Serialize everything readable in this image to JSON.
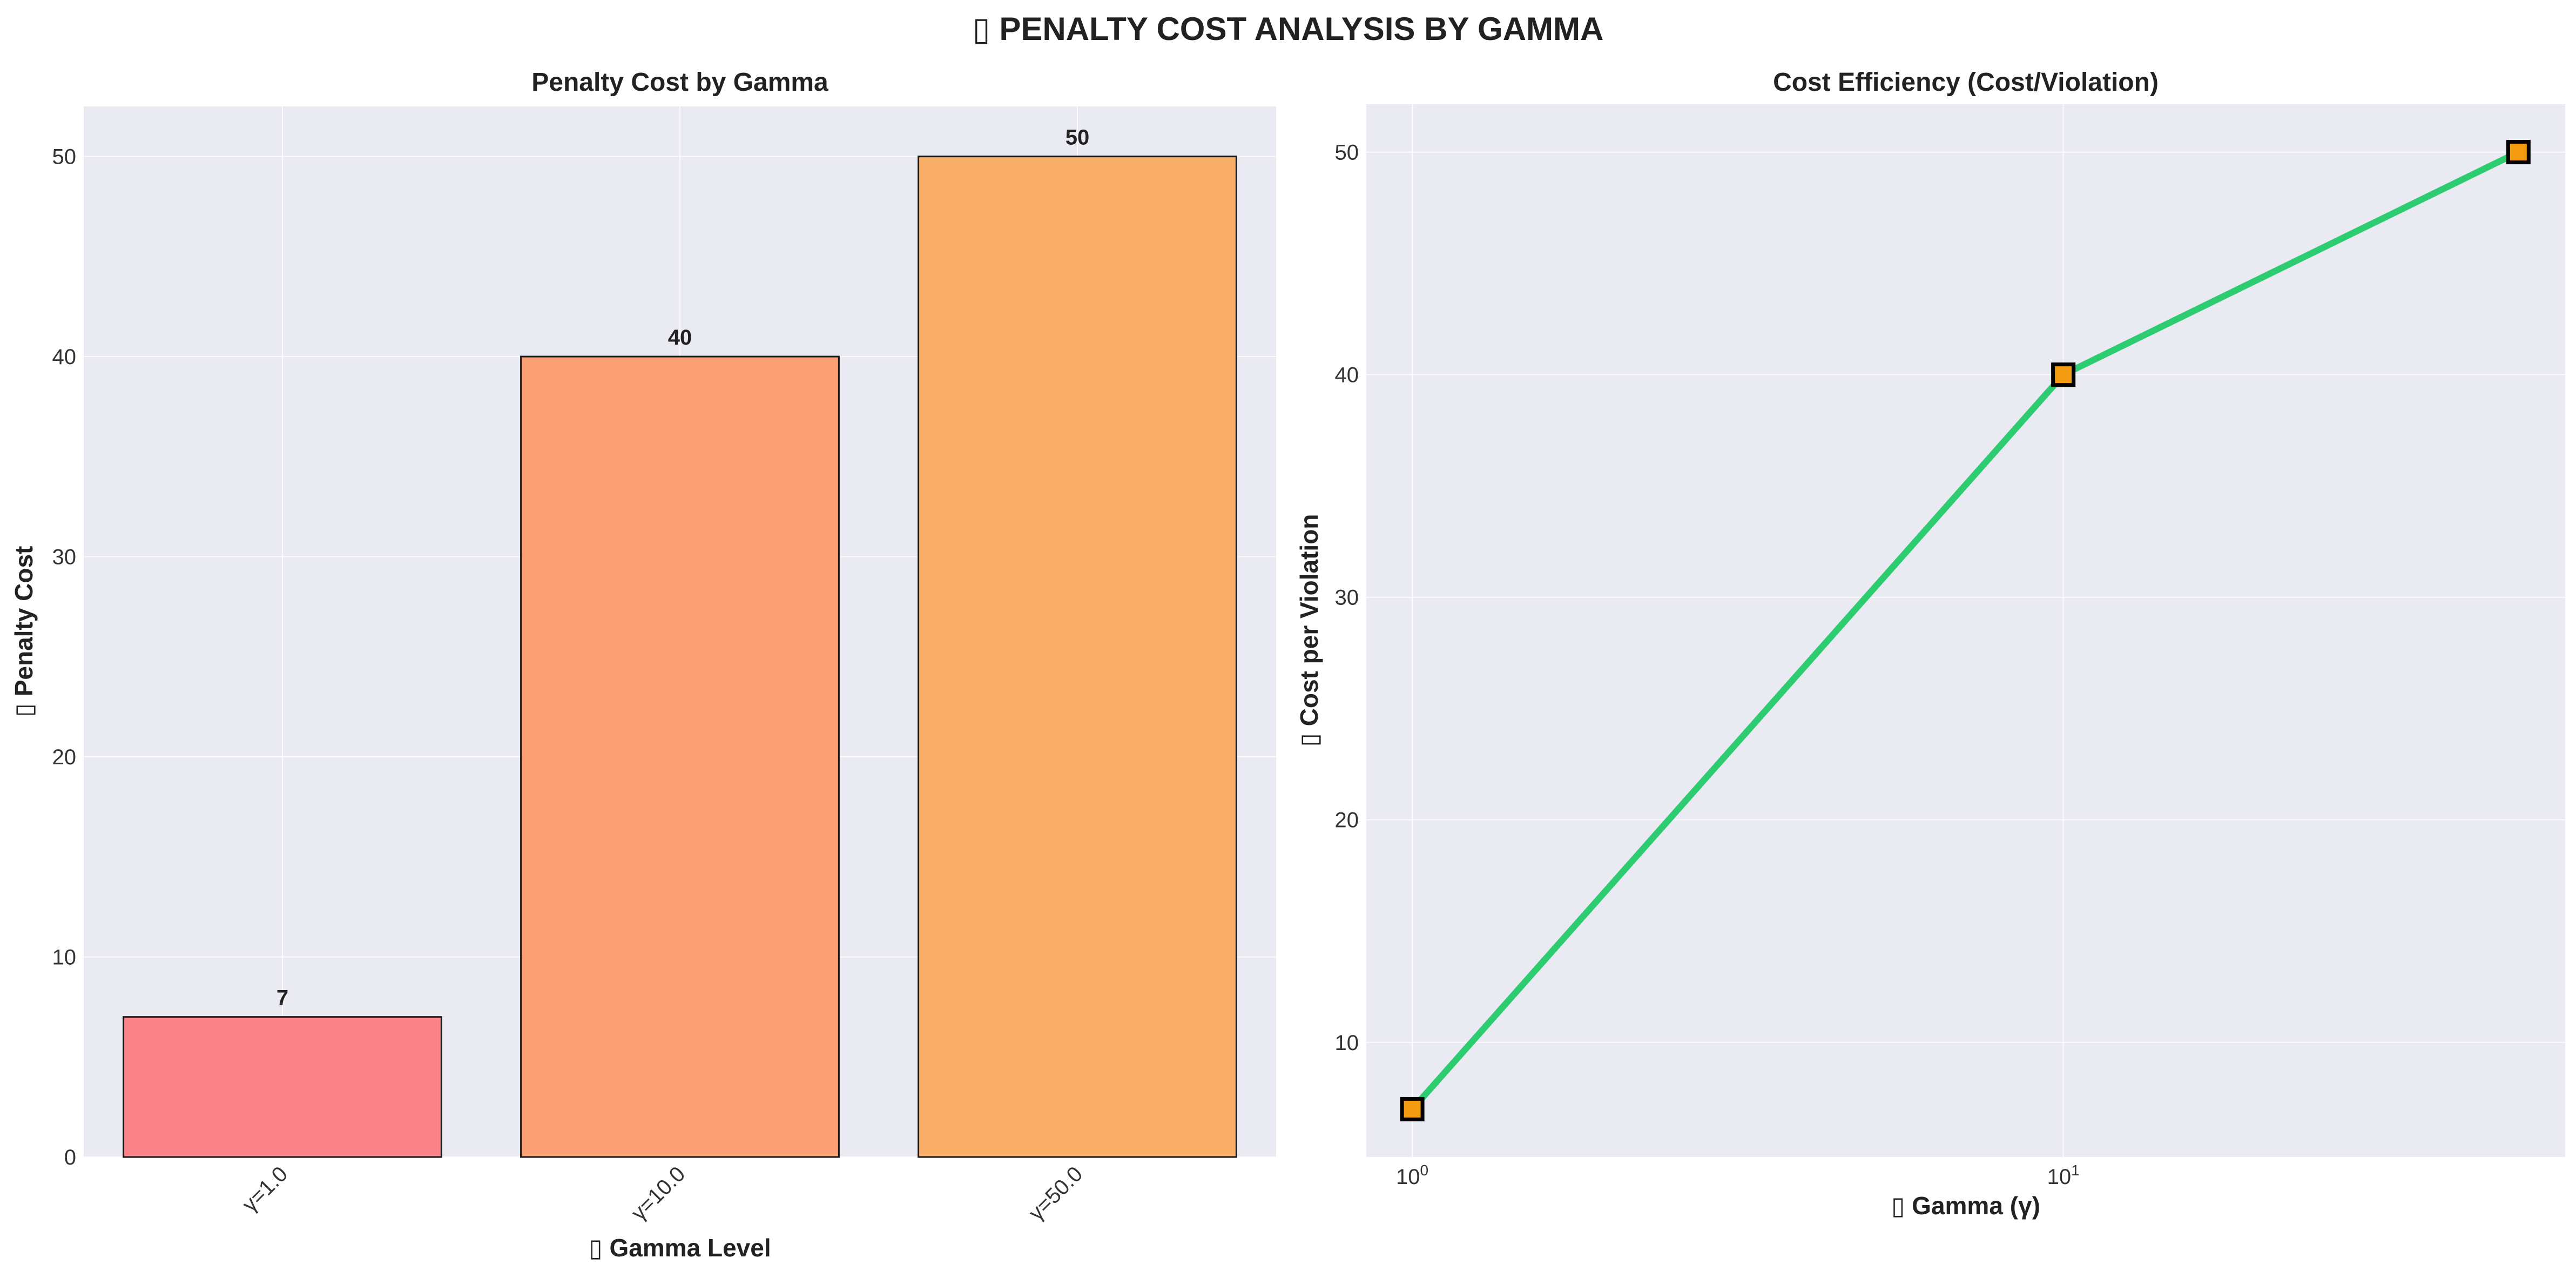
{
  "suptitle": "▯ PENALTY COST ANALYSIS BY GAMMA",
  "chart_data": [
    {
      "type": "bar",
      "title": "Penalty Cost by Gamma",
      "xlabel": "▯ Gamma Level",
      "ylabel": "▯ Penalty Cost",
      "categories": [
        "γ=1.0",
        "γ=10.0",
        "γ=50.0"
      ],
      "values": [
        7,
        40,
        50
      ],
      "value_labels": [
        "7",
        "40",
        "50"
      ],
      "colors": [
        "#fc8489",
        "#fca075",
        "#f9ae68"
      ],
      "ylim": [
        0,
        52.5
      ],
      "yticks": [
        0,
        10,
        20,
        30,
        40,
        50
      ],
      "grid": true
    },
    {
      "type": "line",
      "title": "Cost Efficiency (Cost/Violation)",
      "xlabel": "▯ Gamma (γ)",
      "ylabel": "▯ Cost per Violation",
      "x_scale": "log",
      "x": [
        1,
        10,
        50
      ],
      "y": [
        7,
        40,
        50
      ],
      "xlim": [
        0.85,
        59
      ],
      "ylim": [
        4.85,
        52.15
      ],
      "yticks": [
        10,
        20,
        30,
        40,
        50
      ],
      "xticks": [
        {
          "base": "10",
          "exp": "0",
          "value": 1
        },
        {
          "base": "10",
          "exp": "1",
          "value": 10
        }
      ],
      "line_color": "#2ecc71",
      "marker_color": "#f39c12",
      "marker": "square",
      "grid": true
    }
  ]
}
